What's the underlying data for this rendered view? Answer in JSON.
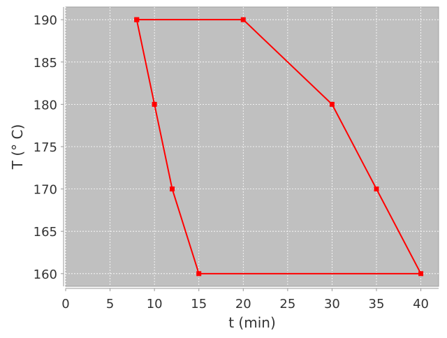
{
  "chart_data": {
    "type": "line",
    "title": "",
    "xlabel": "t (min)",
    "ylabel": "T (° C)",
    "xlim": [
      0,
      42
    ],
    "ylim": [
      158.5,
      191.5
    ],
    "xticks": [
      0,
      5,
      10,
      15,
      20,
      25,
      30,
      35,
      40
    ],
    "yticks": [
      160,
      165,
      170,
      175,
      180,
      185,
      190
    ],
    "grid": true,
    "legend": "none",
    "series": [
      {
        "x": [
          8,
          10,
          12,
          15,
          40,
          35,
          30,
          20,
          8
        ],
        "y": [
          190,
          180,
          170,
          160,
          160,
          170,
          180,
          190,
          190
        ],
        "color": "#ff0000",
        "marker": "square"
      }
    ],
    "colors": {
      "plot_background": "#c0c0c0",
      "grid": "#ffffff",
      "series": "#ff0000"
    }
  }
}
